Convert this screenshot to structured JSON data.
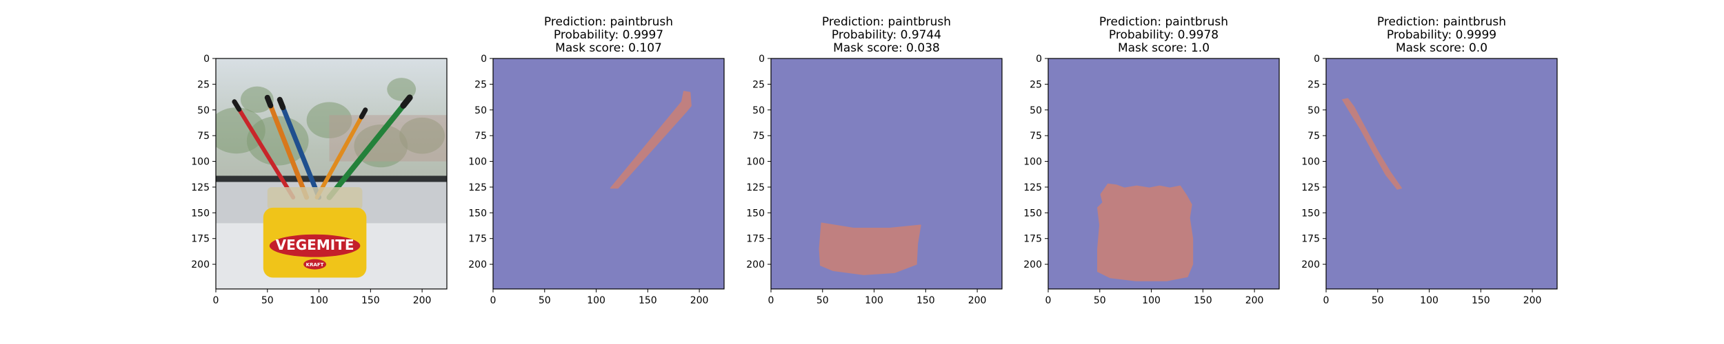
{
  "colors": {
    "background": "#8080c0",
    "mask": "#c08080",
    "axis": "#000000"
  },
  "chart_data": [
    {
      "type": "image",
      "panel": 1,
      "content": "photo",
      "title_lines": [],
      "xlim": [
        0,
        224
      ],
      "ylim": [
        224,
        0
      ],
      "xticks": [
        0,
        50,
        100,
        150,
        200
      ],
      "yticks": [
        0,
        25,
        50,
        75,
        100,
        125,
        150,
        175,
        200
      ],
      "photo_text": [
        "VEGEMITE",
        "KRAFT"
      ]
    },
    {
      "type": "image",
      "panel": 2,
      "content": "mask",
      "title_lines": [
        "Prediction: paintbrush",
        "Probability: 0.9997",
        "Mask score: 0.107"
      ],
      "xlim": [
        0,
        224
      ],
      "ylim": [
        224,
        0
      ],
      "xticks": [
        0,
        50,
        100,
        150,
        200
      ],
      "yticks": [
        0,
        25,
        50,
        75,
        100,
        125,
        150,
        175,
        200
      ],
      "mask_polygon": [
        [
          114,
          126
        ],
        [
          121,
          126
        ],
        [
          187,
          52
        ],
        [
          192,
          46
        ],
        [
          191,
          33
        ],
        [
          185,
          32
        ],
        [
          183,
          42
        ]
      ]
    },
    {
      "type": "image",
      "panel": 3,
      "content": "mask",
      "title_lines": [
        "Prediction: paintbrush",
        "Probability: 0.9744",
        "Mask score: 0.038"
      ],
      "xlim": [
        0,
        224
      ],
      "ylim": [
        224,
        0
      ],
      "xticks": [
        0,
        50,
        100,
        150,
        200
      ],
      "yticks": [
        0,
        25,
        50,
        75,
        100,
        125,
        150,
        175,
        200
      ],
      "mask_polygon": [
        [
          49,
          160
        ],
        [
          80,
          165
        ],
        [
          115,
          165
        ],
        [
          145,
          162
        ],
        [
          142,
          180
        ],
        [
          141,
          200
        ],
        [
          120,
          208
        ],
        [
          90,
          210
        ],
        [
          60,
          206
        ],
        [
          48,
          201
        ],
        [
          47,
          185
        ]
      ]
    },
    {
      "type": "image",
      "panel": 4,
      "content": "mask",
      "title_lines": [
        "Prediction: paintbrush",
        "Probability: 0.9978",
        "Mask score: 1.0"
      ],
      "xlim": [
        0,
        224
      ],
      "ylim": [
        224,
        0
      ],
      "xticks": [
        0,
        50,
        100,
        150,
        200
      ],
      "yticks": [
        0,
        25,
        50,
        75,
        100,
        125,
        150,
        175,
        200
      ],
      "mask_polygon": [
        [
          58,
          122
        ],
        [
          66,
          123
        ],
        [
          74,
          126
        ],
        [
          86,
          124
        ],
        [
          98,
          126
        ],
        [
          108,
          124
        ],
        [
          118,
          126
        ],
        [
          128,
          124
        ],
        [
          134,
          133
        ],
        [
          139,
          142
        ],
        [
          137,
          155
        ],
        [
          140,
          175
        ],
        [
          140,
          200
        ],
        [
          135,
          212
        ],
        [
          115,
          216
        ],
        [
          85,
          216
        ],
        [
          60,
          213
        ],
        [
          48,
          207
        ],
        [
          48,
          185
        ],
        [
          50,
          162
        ],
        [
          48,
          145
        ],
        [
          53,
          140
        ],
        [
          51,
          132
        ]
      ]
    },
    {
      "type": "image",
      "panel": 5,
      "content": "mask",
      "title_lines": [
        "Prediction: paintbrush",
        "Probability: 0.9999",
        "Mask score: 0.0"
      ],
      "xlim": [
        0,
        224
      ],
      "ylim": [
        224,
        0
      ],
      "xticks": [
        0,
        50,
        100,
        150,
        200
      ],
      "yticks": [
        0,
        25,
        50,
        75,
        100,
        125,
        150,
        175,
        200
      ],
      "mask_polygon": [
        [
          16,
          40
        ],
        [
          21,
          39
        ],
        [
          27,
          47
        ],
        [
          35,
          62
        ],
        [
          50,
          90
        ],
        [
          62,
          110
        ],
        [
          73,
          126
        ],
        [
          69,
          127
        ],
        [
          58,
          113
        ],
        [
          45,
          90
        ],
        [
          33,
          68
        ],
        [
          22,
          50
        ]
      ]
    }
  ]
}
